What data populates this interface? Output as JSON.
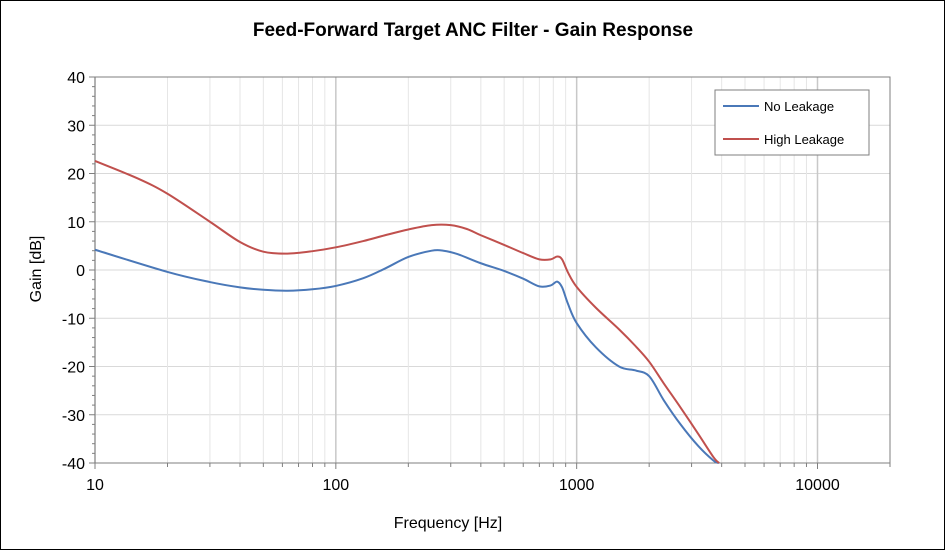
{
  "chart_data": {
    "type": "line",
    "title": "Feed-Forward Target ANC Filter - Gain Response",
    "xlabel": "Frequency [Hz]",
    "ylabel": "Gain [dB]",
    "x_scale": "log",
    "xlim": [
      10,
      20000
    ],
    "ylim": [
      -40,
      40
    ],
    "x_ticks": [
      10,
      100,
      1000,
      10000
    ],
    "x_tick_labels": [
      "10",
      "100",
      "1000",
      "10000"
    ],
    "y_ticks": [
      -40,
      -30,
      -20,
      -10,
      0,
      10,
      20,
      30,
      40
    ],
    "y_tick_labels": [
      "-40",
      "-30",
      "-20",
      "-10",
      "0",
      "10",
      "20",
      "30",
      "40"
    ],
    "grid": true,
    "legend_position": "top-right",
    "series": [
      {
        "name": "No Leakage",
        "color": "#4a78b8",
        "x": [
          10,
          20,
          30,
          40,
          50,
          63,
          80,
          100,
          130,
          160,
          200,
          250,
          280,
          320,
          400,
          500,
          600,
          700,
          780,
          830,
          870,
          920,
          1000,
          1200,
          1500,
          1750,
          2000,
          2300,
          2700,
          3200,
          3700,
          3900
        ],
        "y": [
          4.2,
          -0.4,
          -2.5,
          -3.6,
          -4.1,
          -4.3,
          -4.0,
          -3.3,
          -1.7,
          0.3,
          2.7,
          4.0,
          4.0,
          3.3,
          1.4,
          -0.2,
          -1.8,
          -3.4,
          -3.2,
          -2.4,
          -3.6,
          -7.0,
          -11.0,
          -16.0,
          -20.0,
          -20.8,
          -22.0,
          -27.0,
          -32.0,
          -36.5,
          -39.5,
          -40.0
        ]
      },
      {
        "name": "High Leakage",
        "color": "#c0504d",
        "x": [
          10,
          15,
          20,
          30,
          40,
          50,
          63,
          80,
          100,
          130,
          160,
          200,
          250,
          300,
          350,
          400,
          500,
          600,
          700,
          780,
          830,
          870,
          920,
          1000,
          1200,
          1500,
          1750,
          2000,
          2300,
          2700,
          3200,
          3700,
          3900
        ],
        "y": [
          22.6,
          19.0,
          15.8,
          10.0,
          5.8,
          3.8,
          3.4,
          3.9,
          4.7,
          6.0,
          7.2,
          8.4,
          9.3,
          9.3,
          8.5,
          7.2,
          5.2,
          3.5,
          2.2,
          2.2,
          2.8,
          2.2,
          -0.5,
          -3.5,
          -7.8,
          -12.3,
          -15.7,
          -19.0,
          -23.5,
          -28.5,
          -34.0,
          -38.8,
          -40.0
        ]
      }
    ]
  }
}
